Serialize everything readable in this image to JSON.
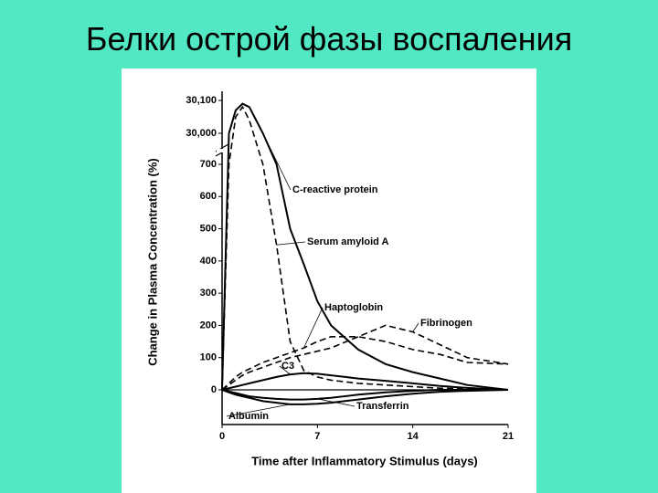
{
  "slide_title": "Белки острой фазы воспаления",
  "chart_data": {
    "type": "line",
    "x_label": "Time after Inflammatory Stimulus (days)",
    "y_label": "Change in Plasma Concentration (%)",
    "x": [
      0,
      0.5,
      1,
      1.5,
      2,
      3,
      4,
      5,
      6,
      7,
      8,
      10,
      12,
      14,
      16,
      18,
      21
    ],
    "xlim": [
      0,
      21
    ],
    "xticks": [
      0,
      7,
      14,
      21
    ],
    "ylim": [
      -100,
      30100
    ],
    "yticks": [
      0,
      100,
      200,
      300,
      400,
      500,
      600,
      700,
      {
        "value": 30000,
        "label": "30,000"
      },
      {
        "value": 30100,
        "label": "30,100"
      }
    ],
    "series": [
      {
        "name": "C-reactive protein",
        "color": "#000000",
        "dashed": false,
        "values": [
          0,
          30000,
          30070,
          30090,
          30080,
          30000,
          700,
          500,
          390,
          275,
          200,
          125,
          80,
          55,
          35,
          15,
          0
        ]
      },
      {
        "name": "Serum amyloid A",
        "color": "#000000",
        "dashed": true,
        "values": [
          0,
          700,
          30050,
          30080,
          30040,
          700,
          450,
          150,
          60,
          40,
          30,
          20,
          15,
          10,
          5,
          3,
          0
        ]
      },
      {
        "name": "Haptoglobin",
        "color": "#000000",
        "dashed": true,
        "values": [
          0,
          20,
          40,
          55,
          65,
          85,
          100,
          115,
          130,
          150,
          165,
          165,
          150,
          125,
          110,
          85,
          80
        ]
      },
      {
        "name": "Fibrinogen",
        "color": "#000000",
        "dashed": true,
        "values": [
          0,
          15,
          30,
          45,
          55,
          70,
          85,
          100,
          110,
          120,
          130,
          165,
          200,
          180,
          140,
          100,
          80
        ]
      },
      {
        "name": "C3",
        "color": "#000000",
        "dashed": false,
        "values": [
          0,
          5,
          10,
          15,
          20,
          30,
          40,
          48,
          52,
          50,
          45,
          35,
          28,
          20,
          12,
          6,
          0
        ]
      },
      {
        "name": "Transferrin",
        "color": "#000000",
        "dashed": false,
        "values": [
          0,
          -5,
          -10,
          -15,
          -20,
          -25,
          -28,
          -30,
          -30,
          -28,
          -25,
          -15,
          -8,
          -3,
          0,
          0,
          0
        ]
      },
      {
        "name": "Albumin",
        "color": "#000000",
        "dashed": false,
        "values": [
          0,
          -8,
          -15,
          -20,
          -25,
          -35,
          -40,
          -45,
          -45,
          -43,
          -40,
          -30,
          -20,
          -12,
          -6,
          -3,
          0
        ]
      }
    ]
  }
}
